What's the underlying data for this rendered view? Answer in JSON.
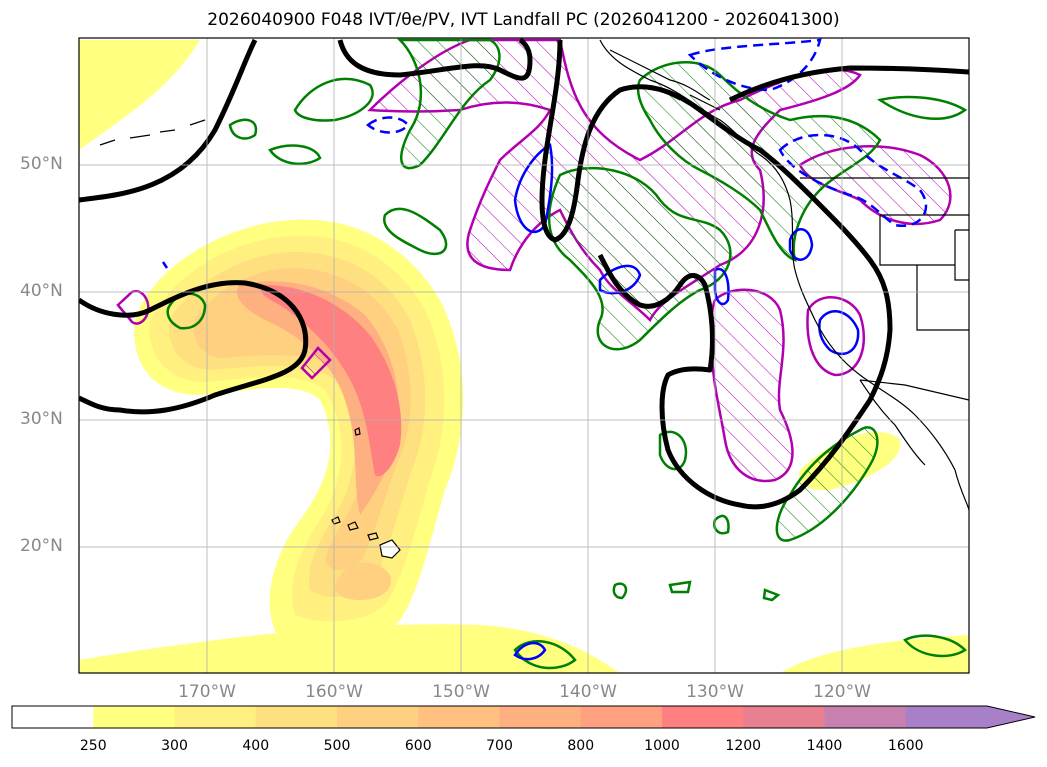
{
  "title": "2026040900 F048 IVT/θe/PV, IVT Landfall PC (2026041200 - 2026041300)",
  "map": {
    "lat_labels": [
      "50°N",
      "40°N",
      "30°N",
      "20°N"
    ],
    "lon_labels": [
      "170°W",
      "160°W",
      "150°W",
      "140°W",
      "130°W",
      "120°W"
    ],
    "extent": {
      "lon_min": -180,
      "lon_max": -110,
      "lat_min": 10,
      "lat_max": 60
    },
    "grid": true
  },
  "colorbar": {
    "levels": [
      "250",
      "300",
      "400",
      "500",
      "600",
      "700",
      "800",
      "1000",
      "1200",
      "1400",
      "1600"
    ],
    "colors": [
      "#ffff80",
      "#fff080",
      "#ffe080",
      "#ffd080",
      "#ffc080",
      "#ffb080",
      "#ffa080",
      "#ff8080",
      "#e88090",
      "#c880b0",
      "#a880c8"
    ],
    "extend": "max"
  },
  "contours": {
    "ivt_fill": "#ff8080",
    "black_line": "#000000",
    "green_line": "#008000",
    "magenta_line": "#b000b0",
    "blue_line": "#0000ff"
  }
}
